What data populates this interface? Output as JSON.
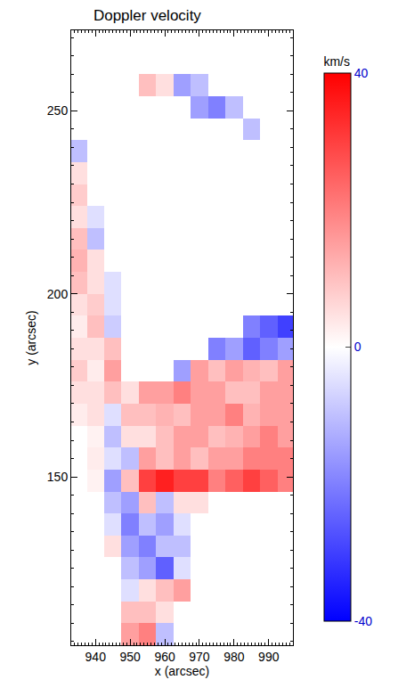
{
  "chart_data": {
    "type": "heatmap",
    "title": "Doppler velocity",
    "x_label": "x (arcsec)",
    "y_label": "y (arcsec)",
    "x": [
      935,
      940,
      945,
      950,
      955,
      960,
      965,
      970,
      975,
      980,
      985,
      990,
      995
    ],
    "y": [
      107,
      113,
      119,
      125,
      131,
      137,
      143,
      149,
      155,
      161,
      167,
      173,
      179,
      185,
      191,
      197,
      203,
      209,
      215,
      221,
      227,
      233,
      239,
      245,
      251,
      257,
      263,
      269
    ],
    "cells": [
      [
        null,
        null,
        null,
        15,
        20,
        -10,
        null,
        null,
        null,
        null,
        null,
        null,
        null
      ],
      [
        null,
        null,
        null,
        10,
        10,
        5,
        null,
        null,
        null,
        null,
        null,
        null,
        null
      ],
      [
        null,
        null,
        null,
        -5,
        5,
        10,
        15,
        null,
        null,
        null,
        null,
        null,
        null
      ],
      [
        null,
        null,
        null,
        -10,
        -15,
        -25,
        -5,
        null,
        null,
        null,
        null,
        null,
        null
      ],
      [
        null,
        null,
        5,
        -15,
        -20,
        -10,
        -10,
        null,
        null,
        null,
        null,
        null,
        null
      ],
      [
        null,
        null,
        -5,
        -20,
        -10,
        -15,
        -5,
        null,
        null,
        null,
        null,
        null,
        null
      ],
      [
        null,
        null,
        -10,
        -15,
        10,
        -10,
        5,
        5,
        null,
        null,
        null,
        null,
        null
      ],
      [
        null,
        2,
        -15,
        10,
        30,
        35,
        30,
        30,
        20,
        25,
        30,
        25,
        20
      ],
      [
        null,
        3,
        -5,
        -10,
        15,
        10,
        15,
        10,
        15,
        15,
        20,
        20,
        20
      ],
      [
        null,
        2,
        -10,
        5,
        5,
        10,
        15,
        15,
        10,
        12,
        15,
        20,
        15
      ],
      [
        3,
        5,
        -5,
        10,
        10,
        12,
        10,
        15,
        15,
        20,
        12,
        15,
        15
      ],
      [
        5,
        5,
        10,
        5,
        15,
        15,
        20,
        15,
        15,
        10,
        10,
        15,
        15
      ],
      [
        8,
        3,
        15,
        null,
        null,
        null,
        -15,
        15,
        10,
        15,
        12,
        10,
        15
      ],
      [
        5,
        5,
        10,
        null,
        null,
        null,
        null,
        null,
        -20,
        -15,
        -25,
        -20,
        -15
      ],
      [
        3,
        10,
        -8,
        null,
        null,
        null,
        null,
        null,
        null,
        null,
        -20,
        -25,
        -30
      ],
      [
        5,
        8,
        -5,
        null,
        null,
        null,
        null,
        null,
        null,
        null,
        null,
        null,
        null
      ],
      [
        10,
        5,
        -5,
        null,
        null,
        null,
        null,
        null,
        null,
        null,
        null,
        null,
        null
      ],
      [
        12,
        5,
        null,
        null,
        null,
        null,
        null,
        null,
        null,
        null,
        null,
        null,
        null
      ],
      [
        10,
        -10,
        null,
        null,
        null,
        null,
        null,
        null,
        null,
        null,
        null,
        null,
        null
      ],
      [
        5,
        -5,
        null,
        null,
        null,
        null,
        null,
        null,
        null,
        null,
        null,
        null,
        null
      ],
      [
        8,
        null,
        null,
        null,
        null,
        null,
        null,
        null,
        null,
        null,
        null,
        null,
        null
      ],
      [
        5,
        null,
        null,
        null,
        null,
        null,
        null,
        null,
        null,
        null,
        null,
        null,
        null
      ],
      [
        -10,
        null,
        null,
        null,
        null,
        null,
        null,
        null,
        null,
        null,
        null,
        null,
        null
      ],
      [
        null,
        null,
        null,
        null,
        null,
        null,
        null,
        null,
        null,
        null,
        -10,
        null,
        null
      ],
      [
        null,
        null,
        null,
        null,
        null,
        null,
        null,
        -15,
        -20,
        -10,
        null,
        null,
        null
      ],
      [
        null,
        null,
        null,
        null,
        10,
        5,
        -15,
        -10,
        null,
        null,
        null,
        null,
        null
      ],
      [
        null,
        null,
        null,
        null,
        null,
        null,
        null,
        null,
        null,
        null,
        null,
        null,
        null
      ],
      [
        null,
        null,
        null,
        null,
        null,
        null,
        null,
        null,
        null,
        null,
        null,
        null,
        null
      ]
    ],
    "xlim": [
      933,
      997
    ],
    "ylim": [
      104,
      272
    ],
    "xticks": [
      940,
      950,
      960,
      970,
      980,
      990
    ],
    "yticks": [
      150,
      200,
      250
    ],
    "colorbar_title": "km/s",
    "colorbar_range": [
      -40,
      40
    ],
    "colorbar_ticks": [
      -40,
      0,
      40
    ]
  }
}
